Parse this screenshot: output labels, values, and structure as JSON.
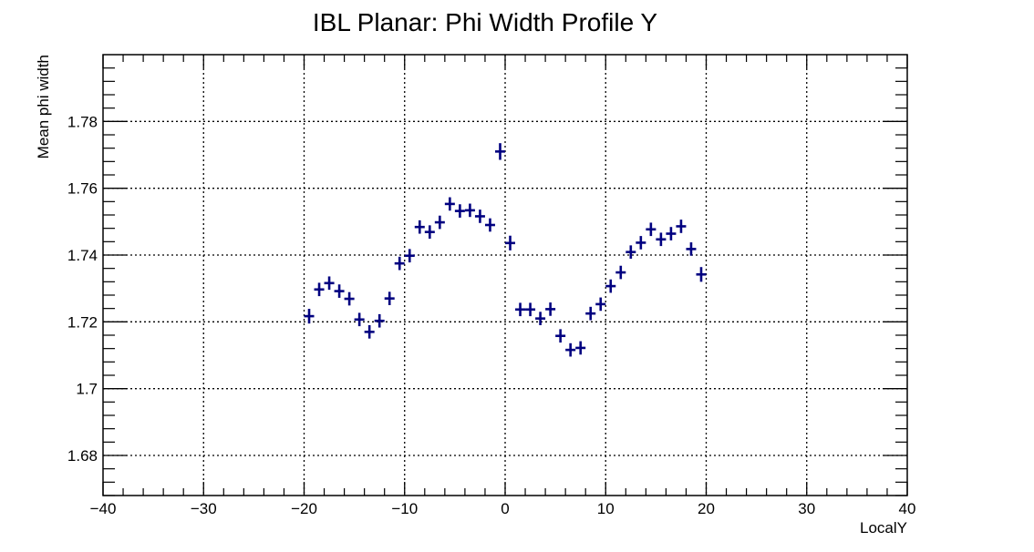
{
  "chart_data": {
    "type": "scatter",
    "title": "IBL Planar: Phi Width Profile Y",
    "xlabel": "LocalY",
    "ylabel": "Mean phi width",
    "xlim": [
      -40,
      40
    ],
    "ylim": [
      1.668,
      1.8
    ],
    "grid": true,
    "x_ticks": [
      -40,
      -30,
      -20,
      -10,
      0,
      10,
      20,
      30,
      40
    ],
    "x_tick_labels": [
      "−40",
      "−30",
      "−20",
      "−10",
      "0",
      "10",
      "20",
      "30",
      "40"
    ],
    "y_ticks": [
      1.68,
      1.7,
      1.72,
      1.74,
      1.76,
      1.78
    ],
    "y_tick_labels": [
      "1.68",
      "1.7",
      "1.72",
      "1.74",
      "1.76",
      "1.78"
    ],
    "series": [
      {
        "color": "#000080",
        "x": [
          -19.5,
          -18.5,
          -17.5,
          -16.5,
          -15.5,
          -14.5,
          -13.5,
          -12.5,
          -11.5,
          -10.5,
          -9.5,
          -8.5,
          -7.5,
          -6.5,
          -5.5,
          -4.5,
          -3.5,
          -2.5,
          -1.5,
          -0.5,
          0.5,
          1.5,
          2.5,
          3.5,
          4.5,
          5.5,
          6.5,
          7.5,
          8.5,
          9.5,
          10.5,
          11.5,
          12.5,
          13.5,
          14.5,
          15.5,
          16.5,
          17.5,
          18.5,
          19.5
        ],
        "y": [
          1.7217,
          1.7297,
          1.7316,
          1.7292,
          1.7269,
          1.7207,
          1.717,
          1.7203,
          1.727,
          1.7375,
          1.7398,
          1.7484,
          1.7469,
          1.7498,
          1.7553,
          1.7532,
          1.7534,
          1.7516,
          1.749,
          1.771,
          1.7436,
          1.7237,
          1.7237,
          1.721,
          1.7238,
          1.7158,
          1.7116,
          1.7122,
          1.7225,
          1.7253,
          1.7307,
          1.7348,
          1.7409,
          1.7437,
          1.7477,
          1.7447,
          1.7464,
          1.7486,
          1.7418,
          1.7342
        ],
        "y_err": [
          0.0022,
          0.002,
          0.002,
          0.002,
          0.002,
          0.002,
          0.002,
          0.002,
          0.002,
          0.002,
          0.002,
          0.002,
          0.002,
          0.002,
          0.002,
          0.002,
          0.002,
          0.002,
          0.002,
          0.0025,
          0.0022,
          0.002,
          0.002,
          0.002,
          0.002,
          0.002,
          0.002,
          0.002,
          0.002,
          0.002,
          0.002,
          0.002,
          0.002,
          0.002,
          0.002,
          0.002,
          0.002,
          0.002,
          0.002,
          0.0022
        ]
      }
    ]
  }
}
